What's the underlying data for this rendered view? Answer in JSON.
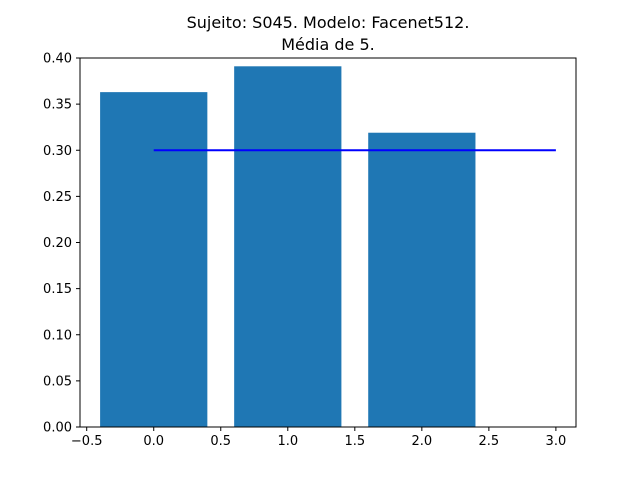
{
  "chart_data": {
    "type": "bar",
    "title": "Sujeito: S045. Modelo: Facenet512.",
    "subtitle": "Média de 5.",
    "xlabel": "",
    "ylabel": "",
    "x": [
      0,
      1,
      2
    ],
    "values": [
      0.363,
      0.391,
      0.319
    ],
    "bar_width": 0.8,
    "xlim": [
      -0.55,
      3.15
    ],
    "ylim": [
      0.0,
      0.4
    ],
    "xticks": [
      -0.5,
      0.0,
      0.5,
      1.0,
      1.5,
      2.0,
      2.5,
      3.0
    ],
    "xtick_labels": [
      "−0.5",
      "0.0",
      "0.5",
      "1.0",
      "1.5",
      "2.0",
      "2.5",
      "3.0"
    ],
    "yticks": [
      0.0,
      0.05,
      0.1,
      0.15,
      0.2,
      0.25,
      0.3,
      0.35,
      0.4
    ],
    "ytick_labels": [
      "0.00",
      "0.05",
      "0.10",
      "0.15",
      "0.20",
      "0.25",
      "0.30",
      "0.35",
      "0.40"
    ],
    "threshold_line": {
      "x_start": 0.0,
      "x_end": 3.0,
      "y": 0.3
    },
    "grid": false,
    "colors": {
      "bar": "#1f77b4",
      "line": "#0000ff"
    }
  }
}
